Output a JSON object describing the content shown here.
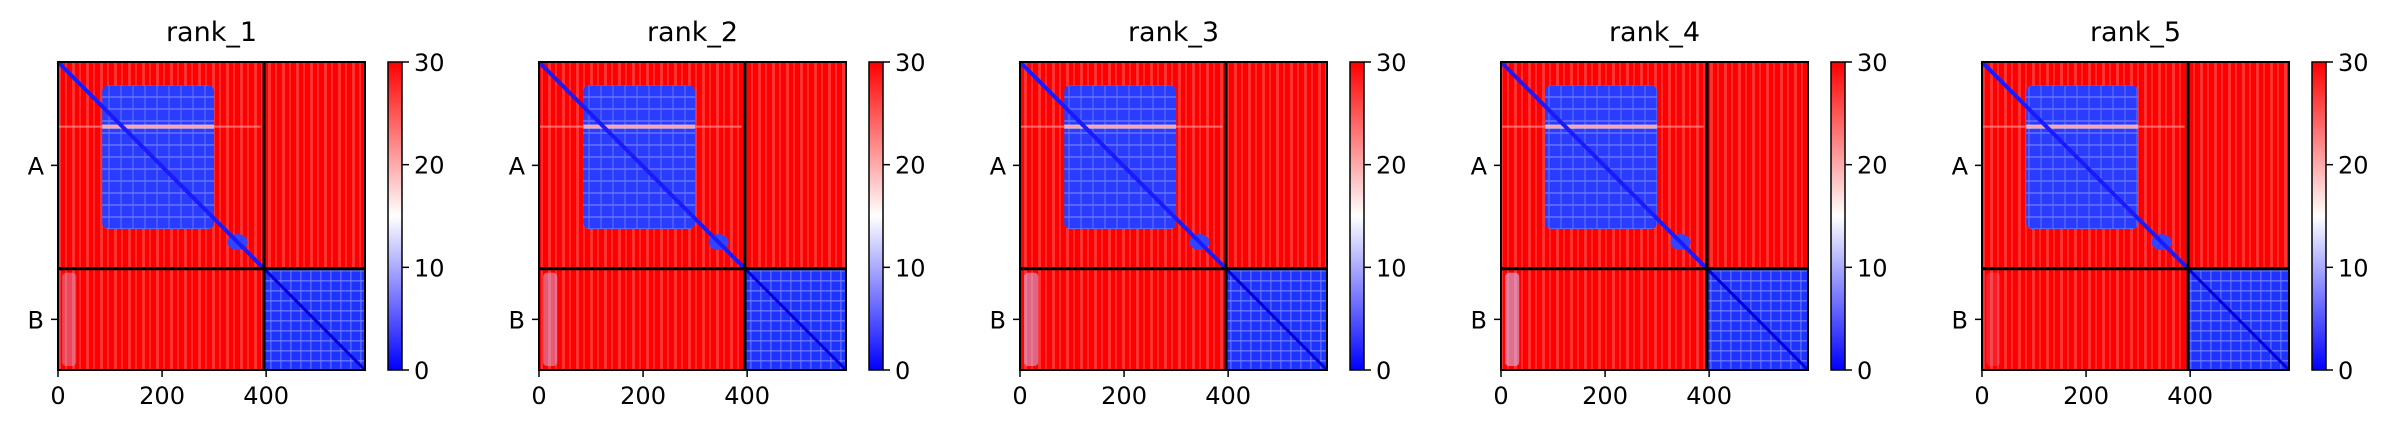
{
  "chart_data": {
    "type": "heatmap",
    "colormap": [
      "#0000ff",
      "#ffffff",
      "#ff0000"
    ],
    "colorbar": {
      "range": [
        0,
        30
      ],
      "ticks": [
        "0",
        "10",
        "20",
        "30"
      ]
    },
    "x_ticks": [
      "0",
      "200",
      "400"
    ],
    "x_tick_values": [
      0,
      200,
      400
    ],
    "x_range": [
      0,
      590
    ],
    "chains": [
      {
        "label": "A",
        "start": 0,
        "end": 396
      },
      {
        "label": "B",
        "start": 396,
        "end": 590
      }
    ],
    "panels": [
      {
        "title": "rank_1",
        "b_stripe": [
          1,
          0.35
        ]
      },
      {
        "title": "rank_2",
        "b_stripe": [
          1,
          0.45
        ]
      },
      {
        "title": "rank_3",
        "b_stripe": [
          1,
          0.5
        ]
      },
      {
        "title": "rank_4",
        "b_stripe": [
          1,
          0.55
        ]
      },
      {
        "title": "rank_5",
        "b_stripe": [
          1,
          0.15
        ]
      }
    ]
  }
}
